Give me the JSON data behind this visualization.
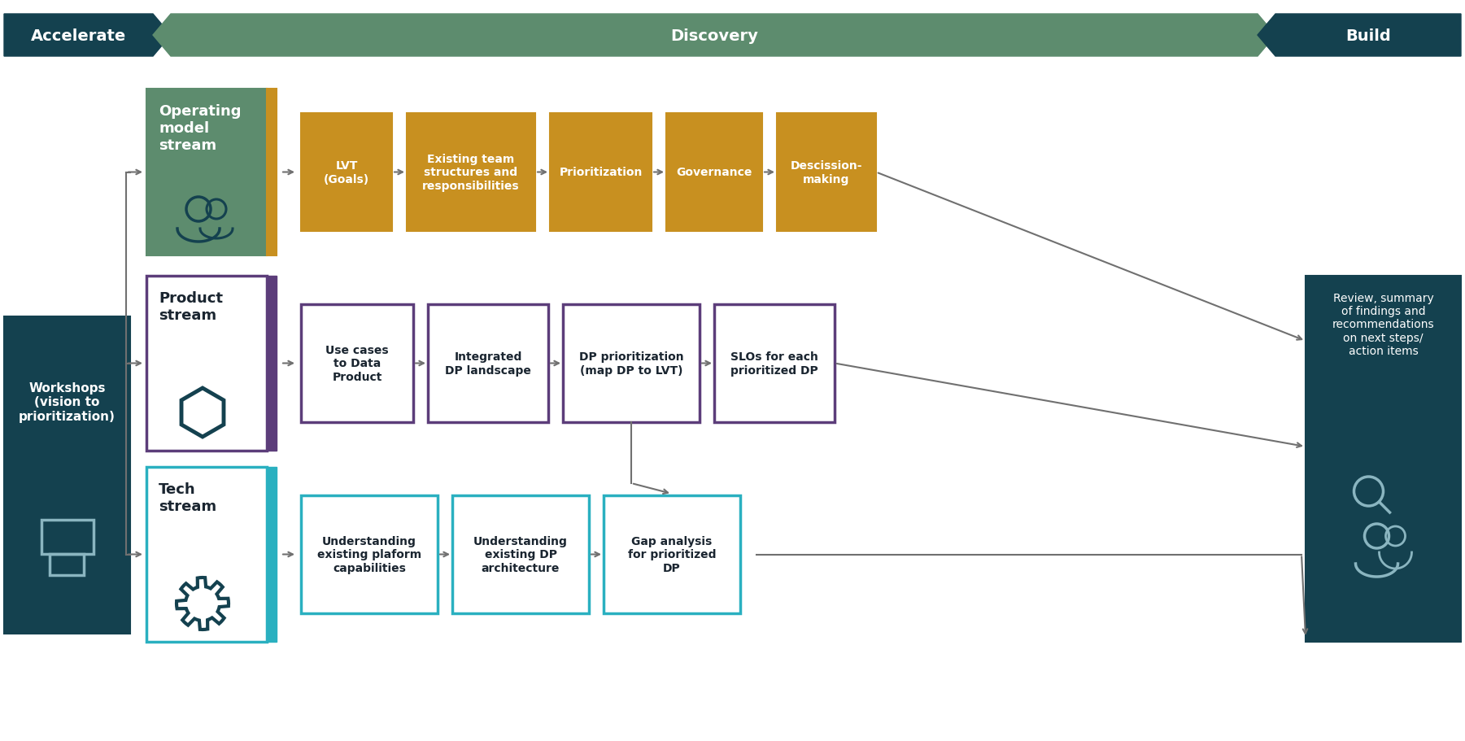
{
  "bg_color": "#ffffff",
  "header_dark_teal": "#14414f",
  "header_green": "#5d8c6e",
  "stream_op_bg": "#5d8c6e",
  "stream_op_accent": "#c89020",
  "stream_product_border": "#5c3d7a",
  "stream_tech_border": "#2ab0c0",
  "op_box_color": "#c89020",
  "product_box_border": "#5c3d7a",
  "tech_box_border": "#2ab0c0",
  "dark_teal_box": "#14414f",
  "arrow_color": "#707070",
  "icon_color": "#8ab5c0",
  "text_white": "#ffffff",
  "text_dark": "#1a2530",
  "workshops_text": "Workshops\n(vision to\nprioritization)",
  "review_text": "Review, summary\nof findings and\nrecommendations\non next steps/\naction items",
  "op_stream_title": "Operating\nmodel\nstream",
  "op_boxes": [
    "LVT\n(Goals)",
    "Existing team\nstructures and\nresponsibilities",
    "Prioritization",
    "Governance",
    "Descission-\nmaking"
  ],
  "product_stream_title": "Product\nstream",
  "product_boxes": [
    "Use cases\nto Data\nProduct",
    "Integrated\nDP landscape",
    "DP prioritization\n(map DP to LVT)",
    "SLOs for each\nprioritized DP"
  ],
  "tech_stream_title": "Tech\nstream",
  "tech_boxes": [
    "Understanding\nexisting plaform\ncapabilities",
    "Understanding\nexisting DP\narchitecture",
    "Gap analysis\nfor prioritized\nDP"
  ]
}
